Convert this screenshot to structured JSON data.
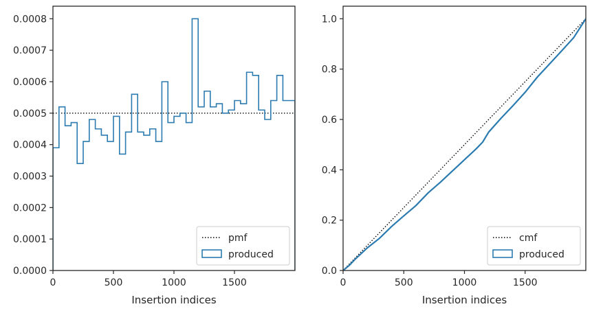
{
  "chart_data": [
    {
      "type": "histogram",
      "xlabel": "Insertion indices",
      "ylabel": "",
      "xlim": [
        0,
        2000
      ],
      "ylim": [
        0,
        0.00084
      ],
      "xticks": [
        "0",
        "500",
        "1000",
        "1500"
      ],
      "yticks": [
        "0.0000",
        "0.0001",
        "0.0002",
        "0.0003",
        "0.0004",
        "0.0005",
        "0.0006",
        "0.0007",
        "0.0008"
      ],
      "grid": false,
      "legend_placement": "lower-right",
      "reference": {
        "name": "pmf",
        "value": 0.0005,
        "style": "dotted",
        "color": "#000000"
      },
      "series": [
        {
          "name": "produced",
          "style": "step",
          "color": "#2b7bb0",
          "bin_edges": [
            0,
            50,
            100,
            150,
            200,
            250,
            300,
            350,
            400,
            450,
            500,
            550,
            600,
            650,
            700,
            750,
            800,
            850,
            900,
            950,
            1000,
            1050,
            1100,
            1150,
            1200,
            1250,
            1300,
            1350,
            1400,
            1450,
            1500,
            1550,
            1600,
            1650,
            1700,
            1750,
            1800,
            1850,
            1900,
            1950,
            2000
          ],
          "values": [
            0.00039,
            0.00052,
            0.00046,
            0.00047,
            0.00034,
            0.00041,
            0.00048,
            0.00045,
            0.00043,
            0.00041,
            0.00049,
            0.00037,
            0.00044,
            0.00056,
            0.00044,
            0.00043,
            0.00045,
            0.00041,
            0.0006,
            0.00047,
            0.00049,
            0.0005,
            0.00047,
            0.0008,
            0.00052,
            0.00057,
            0.00052,
            0.00053,
            0.0005,
            0.00051,
            0.00054,
            0.00053,
            0.00063,
            0.00062,
            0.00051,
            0.00048,
            0.00054,
            0.00062,
            0.00054,
            0.00054
          ]
        }
      ]
    },
    {
      "type": "line",
      "xlabel": "Insertion indices",
      "ylabel": "",
      "xlim": [
        0,
        2000
      ],
      "ylim": [
        0,
        1.05
      ],
      "xticks": [
        "0",
        "500",
        "1000",
        "1500"
      ],
      "yticks": [
        "0.0",
        "0.2",
        "0.4",
        "0.6",
        "0.8",
        "1.0"
      ],
      "grid": false,
      "legend_placement": "lower-right",
      "series": [
        {
          "name": "cmf",
          "style": "dotted",
          "color": "#000000",
          "x": [
            0,
            2000
          ],
          "y": [
            0,
            1.0
          ]
        },
        {
          "name": "produced",
          "style": "solid",
          "color": "#2b7bb0",
          "x": [
            0,
            50,
            100,
            200,
            300,
            400,
            500,
            600,
            700,
            800,
            900,
            1000,
            1100,
            1150,
            1200,
            1300,
            1400,
            1500,
            1600,
            1700,
            1800,
            1900,
            2000
          ],
          "y": [
            0,
            0.02,
            0.045,
            0.09,
            0.128,
            0.175,
            0.217,
            0.258,
            0.308,
            0.35,
            0.395,
            0.44,
            0.485,
            0.51,
            0.55,
            0.604,
            0.655,
            0.708,
            0.768,
            0.82,
            0.872,
            0.925,
            1.0
          ]
        }
      ]
    }
  ]
}
